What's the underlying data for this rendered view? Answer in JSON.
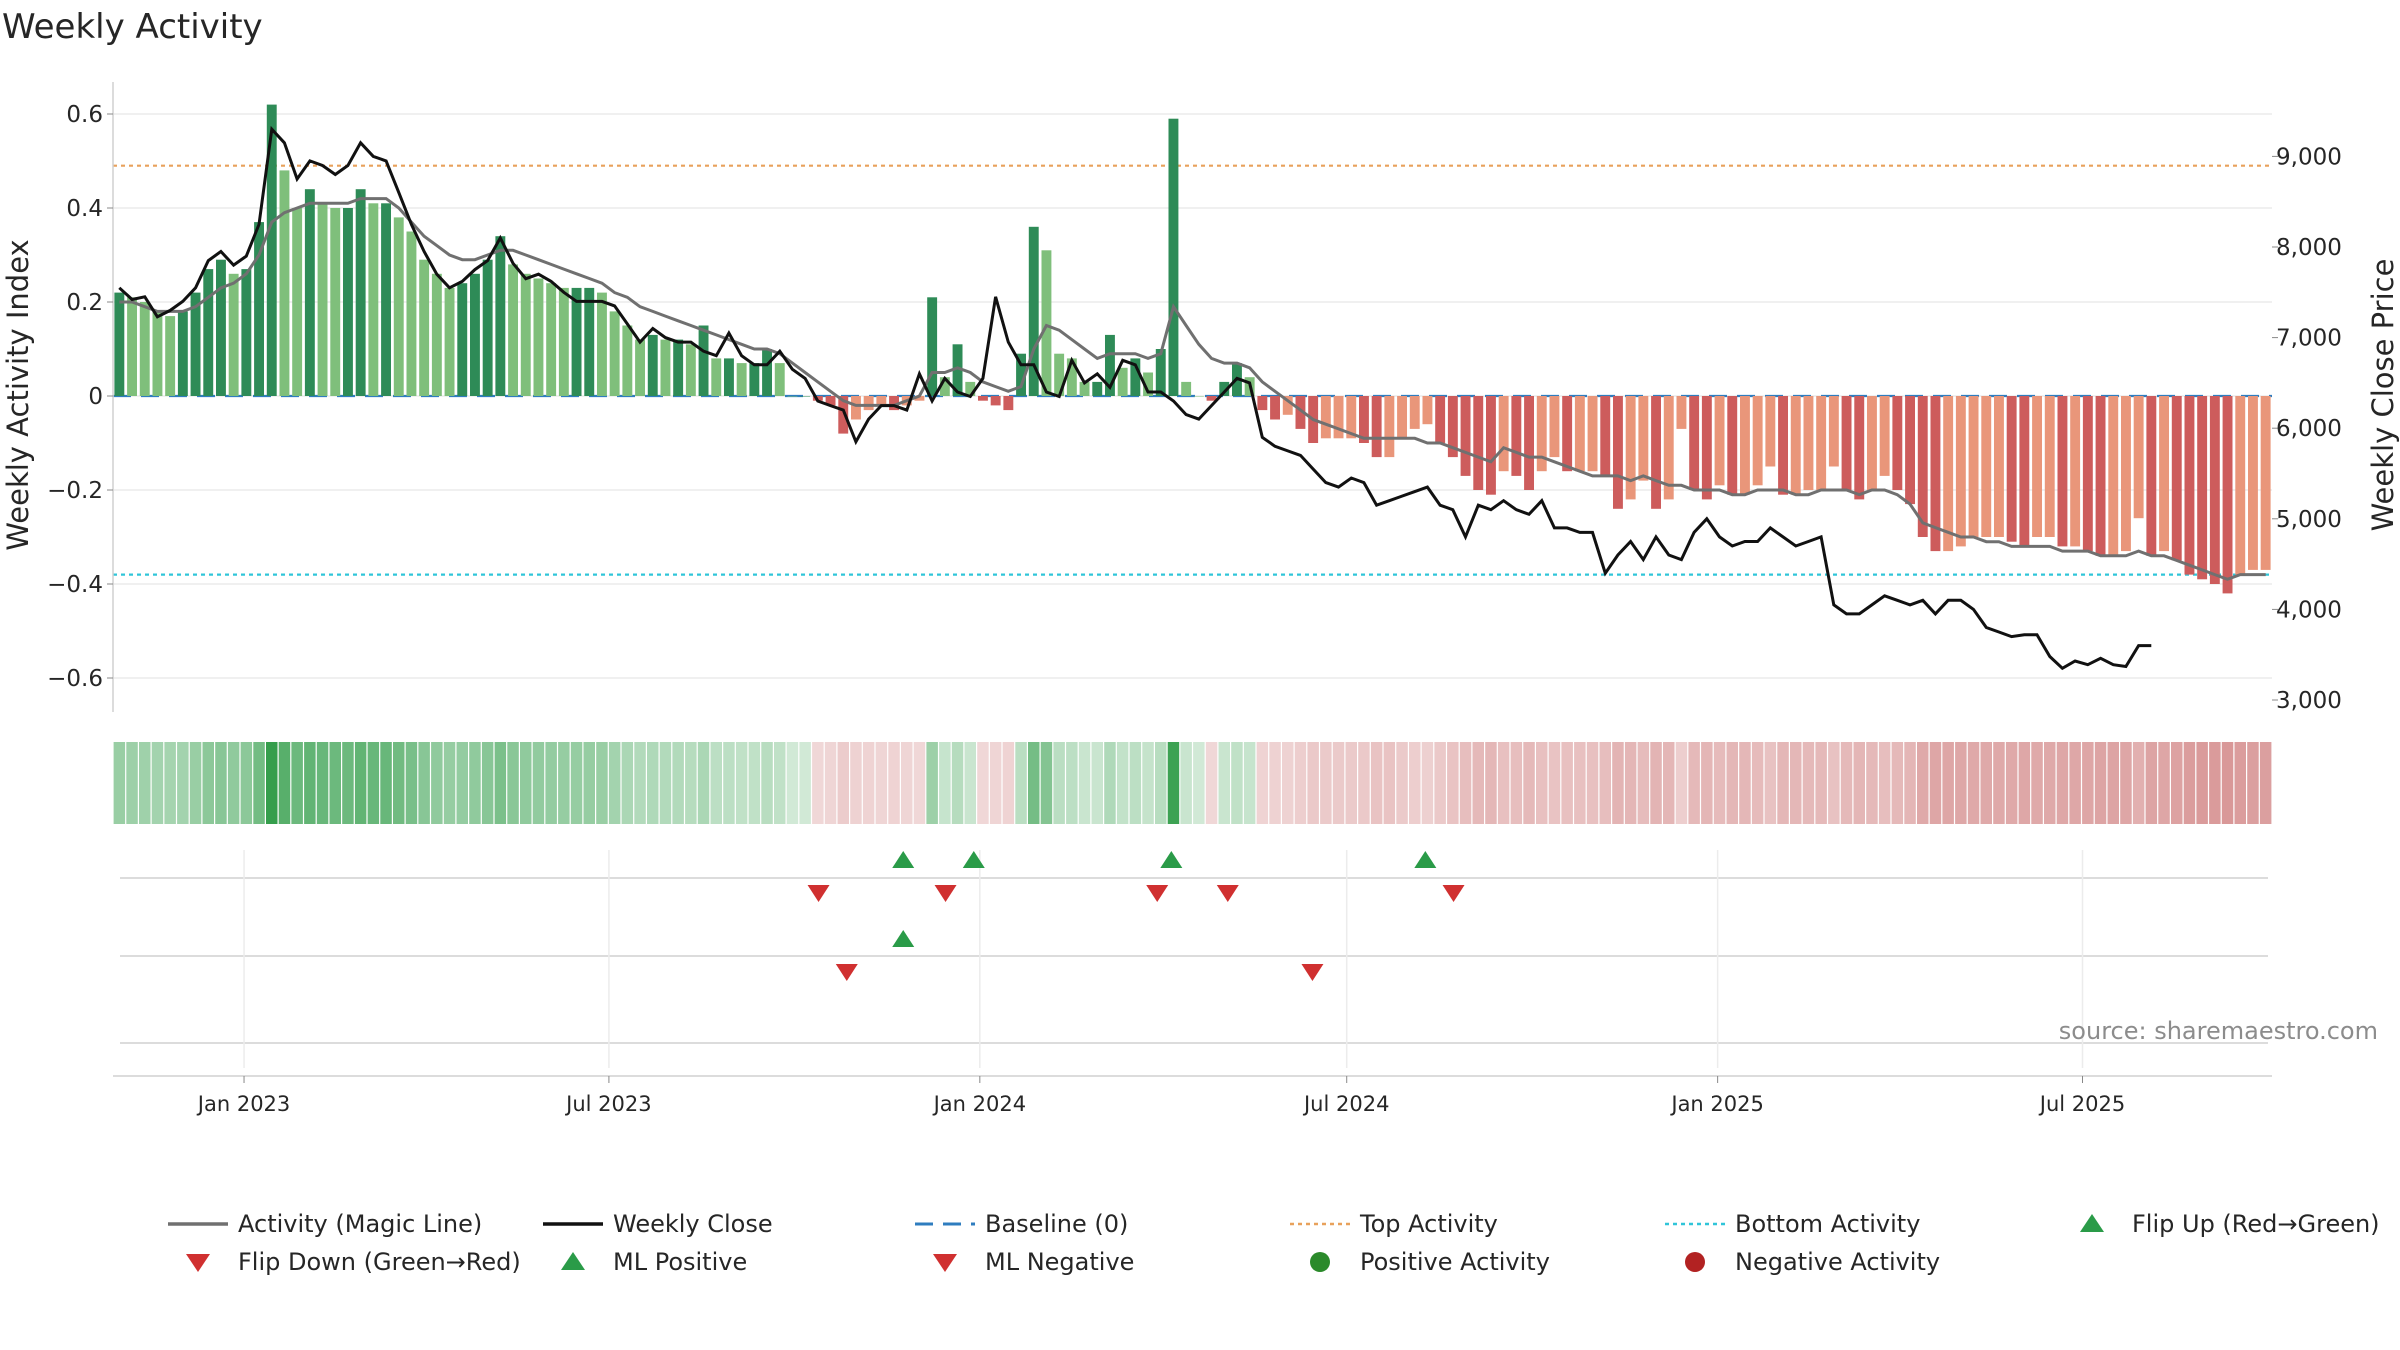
{
  "chart_data": {
    "type": "bar",
    "title": "Weekly Activity",
    "ylabel": "Weekly Activity Index",
    "y2label": "Weekly Close Price",
    "ylim": [
      -0.67,
      0.62
    ],
    "y2lim": [
      2850,
      9950
    ],
    "yticks": [
      -0.6,
      -0.4,
      -0.2,
      0,
      0.2,
      0.4,
      0.6
    ],
    "ytick_labels": [
      "−0.6",
      "−0.4",
      "−0.2",
      "0",
      "0.2",
      "0.4",
      "0.6"
    ],
    "y2ticks": [
      3000,
      4000,
      5000,
      6000,
      7000,
      8000,
      9000
    ],
    "y2tick_labels": [
      "3,000",
      "4,000",
      "5,000",
      "6,000",
      "7,000",
      "8,000",
      "9,000"
    ],
    "date_range": [
      "2022-10-28",
      "2025-10-03"
    ],
    "xticks": [
      "2023-01-01",
      "2023-07-01",
      "2024-01-01",
      "2024-07-01",
      "2025-01-01",
      "2025-07-01"
    ],
    "xtick_labels": [
      "Jan 2023",
      "Jul 2023",
      "Jan 2024",
      "Jul 2024",
      "Jan 2025",
      "Jul 2025"
    ],
    "top_activity": 0.49,
    "bottom_activity": -0.38,
    "baseline": 0,
    "weekly_activity": [
      0.22,
      0.21,
      0.2,
      0.18,
      0.17,
      0.18,
      0.22,
      0.27,
      0.29,
      0.26,
      0.27,
      0.37,
      0.62,
      0.48,
      0.4,
      0.44,
      0.41,
      0.4,
      0.4,
      0.44,
      0.41,
      0.41,
      0.38,
      0.35,
      0.29,
      0.26,
      0.23,
      0.24,
      0.26,
      0.29,
      0.34,
      0.28,
      0.26,
      0.25,
      0.24,
      0.23,
      0.23,
      0.23,
      0.22,
      0.18,
      0.15,
      0.12,
      0.13,
      0.12,
      0.12,
      0.11,
      0.15,
      0.08,
      0.08,
      0.07,
      0.07,
      0.1,
      0.07,
      0.0,
      0.0,
      -0.01,
      -0.02,
      -0.08,
      -0.05,
      -0.03,
      -0.02,
      -0.03,
      -0.02,
      -0.01,
      0.21,
      0.04,
      0.11,
      0.03,
      -0.01,
      -0.02,
      -0.03,
      0.09,
      0.36,
      0.31,
      0.09,
      0.08,
      0.03,
      0.03,
      0.13,
      0.06,
      0.08,
      0.05,
      0.1,
      0.59,
      0.03,
      0.0,
      -0.01,
      0.03,
      0.07,
      0.04,
      -0.03,
      -0.05,
      -0.04,
      -0.07,
      -0.1,
      -0.09,
      -0.09,
      -0.09,
      -0.1,
      -0.13,
      -0.13,
      -0.09,
      -0.07,
      -0.06,
      -0.1,
      -0.13,
      -0.17,
      -0.2,
      -0.21,
      -0.16,
      -0.17,
      -0.2,
      -0.16,
      -0.13,
      -0.16,
      -0.16,
      -0.16,
      -0.17,
      -0.24,
      -0.22,
      -0.18,
      -0.24,
      -0.22,
      -0.07,
      -0.2,
      -0.22,
      -0.19,
      -0.21,
      -0.21,
      -0.19,
      -0.15,
      -0.21,
      -0.21,
      -0.2,
      -0.2,
      -0.15,
      -0.2,
      -0.22,
      -0.2,
      -0.17,
      -0.2,
      -0.23,
      -0.3,
      -0.33,
      -0.33,
      -0.32,
      -0.3,
      -0.3,
      -0.3,
      -0.31,
      -0.32,
      -0.3,
      -0.3,
      -0.32,
      -0.32,
      -0.33,
      -0.34,
      -0.34,
      -0.33,
      -0.26,
      -0.34,
      -0.33,
      -0.35,
      -0.38,
      -0.39,
      -0.4,
      -0.42,
      -0.38,
      -0.37,
      -0.37
    ],
    "magic_line": [
      0.2,
      0.2,
      0.19,
      0.18,
      0.18,
      0.18,
      0.19,
      0.21,
      0.23,
      0.24,
      0.26,
      0.3,
      0.37,
      0.39,
      0.4,
      0.41,
      0.41,
      0.41,
      0.41,
      0.42,
      0.42,
      0.42,
      0.4,
      0.37,
      0.34,
      0.32,
      0.3,
      0.29,
      0.29,
      0.3,
      0.31,
      0.31,
      0.3,
      0.29,
      0.28,
      0.27,
      0.26,
      0.25,
      0.24,
      0.22,
      0.21,
      0.19,
      0.18,
      0.17,
      0.16,
      0.15,
      0.14,
      0.13,
      0.12,
      0.11,
      0.1,
      0.1,
      0.09,
      0.07,
      0.05,
      0.03,
      0.01,
      -0.01,
      -0.02,
      -0.02,
      -0.02,
      -0.02,
      -0.01,
      0.0,
      0.05,
      0.05,
      0.06,
      0.05,
      0.03,
      0.02,
      0.01,
      0.02,
      0.1,
      0.15,
      0.14,
      0.12,
      0.1,
      0.08,
      0.09,
      0.09,
      0.09,
      0.08,
      0.09,
      0.19,
      0.15,
      0.11,
      0.08,
      0.07,
      0.07,
      0.06,
      0.03,
      0.01,
      -0.01,
      -0.03,
      -0.05,
      -0.06,
      -0.07,
      -0.08,
      -0.09,
      -0.09,
      -0.09,
      -0.09,
      -0.09,
      -0.1,
      -0.1,
      -0.11,
      -0.12,
      -0.13,
      -0.14,
      -0.11,
      -0.12,
      -0.13,
      -0.13,
      -0.14,
      -0.15,
      -0.16,
      -0.17,
      -0.17,
      -0.17,
      -0.18,
      -0.17,
      -0.18,
      -0.19,
      -0.19,
      -0.2,
      -0.2,
      -0.2,
      -0.21,
      -0.21,
      -0.2,
      -0.2,
      -0.2,
      -0.21,
      -0.21,
      -0.2,
      -0.2,
      -0.2,
      -0.21,
      -0.2,
      -0.2,
      -0.21,
      -0.23,
      -0.27,
      -0.28,
      -0.29,
      -0.3,
      -0.3,
      -0.31,
      -0.31,
      -0.32,
      -0.32,
      -0.32,
      -0.32,
      -0.33,
      -0.33,
      -0.33,
      -0.34,
      -0.34,
      -0.34,
      -0.33,
      -0.34,
      -0.34,
      -0.35,
      -0.36,
      -0.37,
      -0.38,
      -0.39,
      -0.38,
      -0.38,
      -0.38
    ],
    "weekly_close": [
      7550,
      7420,
      7450,
      7230,
      7300,
      7400,
      7550,
      7850,
      7950,
      7800,
      7900,
      8250,
      9300,
      9150,
      8750,
      8950,
      8900,
      8800,
      8900,
      9150,
      9000,
      8950,
      8600,
      8250,
      7950,
      7700,
      7550,
      7620,
      7750,
      7850,
      8100,
      7820,
      7650,
      7700,
      7620,
      7500,
      7400,
      7400,
      7400,
      7350,
      7150,
      6950,
      7100,
      7000,
      6950,
      6950,
      6850,
      6800,
      7050,
      6800,
      6700,
      6700,
      6850,
      6650,
      6550,
      6300,
      6250,
      6200,
      5850,
      6100,
      6250,
      6250,
      6200,
      6600,
      6300,
      6550,
      6400,
      6350,
      6550,
      7450,
      6950,
      6700,
      6700,
      6400,
      6350,
      6750,
      6500,
      6600,
      6450,
      6750,
      6700,
      6400,
      6400,
      6300,
      6150,
      6100,
      6250,
      6400,
      6550,
      6500,
      5900,
      5800,
      5750,
      5700,
      5550,
      5400,
      5350,
      5450,
      5400,
      5150,
      5200,
      5250,
      5300,
      5350,
      5150,
      5100,
      4800,
      5150,
      5100,
      5200,
      5100,
      5050,
      5200,
      4900,
      4900,
      4850,
      4850,
      4400,
      4600,
      4750,
      4550,
      4800,
      4600,
      4550,
      4850,
      5000,
      4800,
      4700,
      4750,
      4750,
      4900,
      4800,
      4700,
      4750,
      4800,
      4050,
      3950,
      3950,
      4050,
      4150,
      4100,
      4050,
      4100,
      3950,
      4100,
      4100,
      4000,
      3800,
      3750,
      3700,
      3720,
      3720,
      3480,
      3350,
      3430,
      3390,
      3460,
      3390,
      3370,
      3600,
      3600
    ],
    "flip_up_dates": [
      "2023-11-24",
      "2023-12-29",
      "2024-04-05",
      "2024-08-09"
    ],
    "flip_down_dates": [
      "2023-10-13",
      "2023-12-15",
      "2024-03-29",
      "2024-05-03",
      "2024-08-23"
    ],
    "ml_positive_dates": [
      "2023-11-24"
    ],
    "ml_negative_dates": [
      "2023-10-27",
      "2024-06-14"
    ],
    "source": "source: sharemaestro.com",
    "legend": [
      {
        "label": "Activity (Magic Line)",
        "symbol": "line",
        "color": "#707070"
      },
      {
        "label": "Weekly Close",
        "symbol": "line",
        "color": "#111111"
      },
      {
        "label": "Baseline (0)",
        "symbol": "dash",
        "color": "#2f7dbf"
      },
      {
        "label": "Top Activity",
        "symbol": "dot",
        "color": "#e8a15b"
      },
      {
        "label": "Bottom Activity",
        "symbol": "dot",
        "color": "#30c5d9"
      },
      {
        "label": "Flip Up (Red→Green)",
        "symbol": "up",
        "color": "#2a9b48"
      },
      {
        "label": "Flip Down (Green→Red)",
        "symbol": "down",
        "color": "#d03030"
      },
      {
        "label": "ML Positive",
        "symbol": "up",
        "color": "#2a9b48"
      },
      {
        "label": "ML Negative",
        "symbol": "down",
        "color": "#d03030"
      },
      {
        "label": "Positive Activity",
        "symbol": "circle",
        "color": "#2b8a2b"
      },
      {
        "label": "Negative Activity",
        "symbol": "circle",
        "color": "#b22222"
      }
    ],
    "colors": {
      "pos_dark": "#2e8b57",
      "pos_light": "#7fbf7b",
      "neg_dark": "#cd5c5c",
      "neg_light": "#e9967a",
      "grid": "#e6e6e6",
      "axis": "#d0d0d0"
    }
  }
}
